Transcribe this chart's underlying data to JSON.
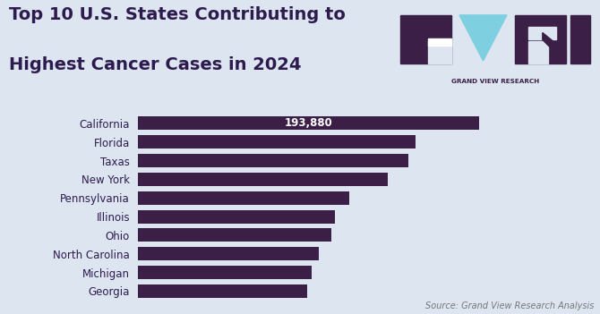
{
  "title_line1": "Top 10 U.S. States Contributing to",
  "title_line2": "Highest Cancer Cases in 2024",
  "states": [
    "California",
    "Florida",
    "Taxas",
    "New York",
    "Pennsylvania",
    "Illinois",
    "Ohio",
    "North Carolina",
    "Michigan",
    "Georgia"
  ],
  "values": [
    193880,
    158000,
    154000,
    142000,
    120000,
    112000,
    110000,
    103000,
    99000,
    96000
  ],
  "bar_color": "#3b1f47",
  "label_color": "#2d1b4e",
  "annotation_text": "193,880",
  "source_text": "Source: Grand View Research Analysis",
  "background_color": "#dde5f0",
  "title_color": "#2d1b4e",
  "title_fontsize": 14,
  "bar_height": 0.72,
  "xlim": [
    0,
    215000
  ],
  "logo_color": "#3b1f47",
  "logo_triangle_color": "#7ecfe0",
  "logo_text": "GRAND VIEW RESEARCH",
  "logo_text_color": "#3b1f47"
}
